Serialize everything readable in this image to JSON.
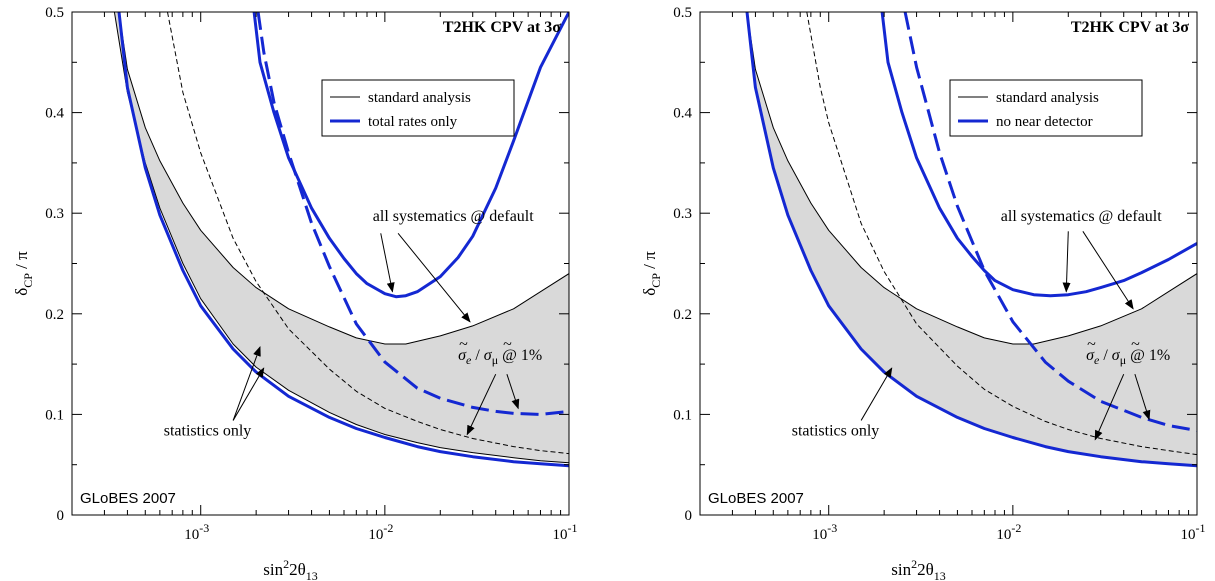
{
  "chart_data": [
    {
      "type": "line",
      "title": "T2HK  CPV at 3σ",
      "xlabel": "sin²2θ13",
      "ylabel": "δCP / π",
      "xscale": "log",
      "xlim": [
        0.0002,
        0.1
      ],
      "ylim": [
        0,
        0.5
      ],
      "x_ticks": [
        {
          "x": 0.001,
          "base": "10",
          "exp": "-3"
        },
        {
          "x": 0.01,
          "base": "10",
          "exp": "-2"
        },
        {
          "x": 0.1,
          "base": "10",
          "exp": "-1"
        }
      ],
      "y_ticks": [
        "0",
        "0.1",
        "0.2",
        "0.3",
        "0.4",
        "0.5"
      ],
      "legend": {
        "position": "top-right",
        "entries": [
          {
            "label": "standard analysis",
            "color": "#000000",
            "width": 1
          },
          {
            "label": "total rates only",
            "color": "#1428d2",
            "width": 3
          }
        ]
      },
      "watermark": "GLoBES 2007",
      "series": [
        {
          "role": "band_upper_systematics",
          "color": "#000000",
          "style": "solid",
          "x": [
            0.00036,
            0.0004,
            0.0005,
            0.0006,
            0.0008,
            0.001,
            0.0015,
            0.002,
            0.003,
            0.005,
            0.007,
            0.01,
            0.013,
            0.02,
            0.03,
            0.05,
            0.07,
            0.1
          ],
          "y": [
            0.5,
            0.443,
            0.385,
            0.352,
            0.31,
            0.283,
            0.246,
            0.226,
            0.205,
            0.187,
            0.176,
            0.17,
            0.17,
            0.178,
            0.188,
            0.205,
            0.222,
            0.24
          ]
        },
        {
          "role": "band_lower_statistics",
          "color": "#000000",
          "style": "solid",
          "x": [
            0.00034,
            0.0004,
            0.0005,
            0.0006,
            0.0008,
            0.001,
            0.0015,
            0.002,
            0.003,
            0.005,
            0.007,
            0.01,
            0.015,
            0.02,
            0.03,
            0.05,
            0.07,
            0.1
          ],
          "y": [
            0.5,
            0.42,
            0.35,
            0.305,
            0.25,
            0.215,
            0.17,
            0.147,
            0.124,
            0.102,
            0.09,
            0.08,
            0.072,
            0.067,
            0.062,
            0.057,
            0.054,
            0.052
          ]
        },
        {
          "role": "1pct",
          "color": "#000000",
          "style": "dashed",
          "x": [
            0.00066,
            0.0008,
            0.001,
            0.0015,
            0.002,
            0.003,
            0.005,
            0.007,
            0.01,
            0.015,
            0.02,
            0.03,
            0.05,
            0.07,
            0.1
          ],
          "y": [
            0.5,
            0.42,
            0.36,
            0.275,
            0.232,
            0.185,
            0.145,
            0.123,
            0.106,
            0.093,
            0.085,
            0.076,
            0.068,
            0.064,
            0.061
          ]
        },
        {
          "role": "rates_statistics",
          "color": "#1428d2",
          "style": "solid",
          "width": 3,
          "x": [
            0.00036,
            0.0004,
            0.0005,
            0.0006,
            0.0008,
            0.001,
            0.0015,
            0.002,
            0.003,
            0.005,
            0.007,
            0.01,
            0.015,
            0.02,
            0.03,
            0.05,
            0.07,
            0.1
          ],
          "y": [
            0.5,
            0.425,
            0.345,
            0.298,
            0.243,
            0.208,
            0.165,
            0.142,
            0.118,
            0.097,
            0.086,
            0.077,
            0.068,
            0.063,
            0.058,
            0.053,
            0.051,
            0.049
          ]
        },
        {
          "role": "rates_systematics",
          "color": "#1428d2",
          "style": "solid",
          "width": 3,
          "x": [
            0.00195,
            0.0021,
            0.0025,
            0.003,
            0.004,
            0.005,
            0.006,
            0.007,
            0.008,
            0.01,
            0.0115,
            0.013,
            0.015,
            0.02,
            0.025,
            0.03,
            0.04,
            0.05,
            0.07,
            0.1
          ],
          "y": [
            0.5,
            0.45,
            0.4,
            0.355,
            0.305,
            0.275,
            0.255,
            0.24,
            0.23,
            0.22,
            0.217,
            0.218,
            0.222,
            0.237,
            0.256,
            0.277,
            0.325,
            0.372,
            0.445,
            0.5
          ]
        },
        {
          "role": "rates_1pct",
          "color": "#1428d2",
          "style": "dashed",
          "width": 3,
          "x": [
            0.00205,
            0.0022,
            0.0025,
            0.003,
            0.004,
            0.005,
            0.007,
            0.01,
            0.015,
            0.02,
            0.03,
            0.04,
            0.05,
            0.07,
            0.1
          ],
          "y": [
            0.5,
            0.46,
            0.41,
            0.36,
            0.29,
            0.247,
            0.19,
            0.152,
            0.126,
            0.116,
            0.107,
            0.103,
            0.101,
            0.1,
            0.103
          ]
        }
      ],
      "annotations": [
        {
          "text": "all systematics @ default",
          "anchor_x": 0.0086,
          "anchor_y": 0.292
        },
        {
          "text": "statistics only",
          "anchor_x": 0.00063,
          "anchor_y": 0.079
        },
        {
          "text_parts": [
            "σ",
            "e",
            " / ",
            "σ",
            "μ",
            " @ 1%"
          ],
          "anchor_x": 0.025,
          "anchor_y": 0.154
        }
      ],
      "arrows": [
        {
          "x1": 0.0095,
          "y1": 0.28,
          "x2": 0.011,
          "y2": 0.222
        },
        {
          "x1": 0.0118,
          "y1": 0.28,
          "x2": 0.029,
          "y2": 0.192
        },
        {
          "x1": 0.0015,
          "y1": 0.094,
          "x2": 0.0021,
          "y2": 0.167
        },
        {
          "x1": 0.0015,
          "y1": 0.094,
          "x2": 0.0022,
          "y2": 0.146
        },
        {
          "x1": 0.046,
          "y1": 0.14,
          "x2": 0.053,
          "y2": 0.106
        },
        {
          "x1": 0.04,
          "y1": 0.14,
          "x2": 0.028,
          "y2": 0.08
        }
      ]
    },
    {
      "type": "line",
      "title": "T2HK  CPV at 3σ",
      "xlabel": "sin²2θ13",
      "ylabel": "δCP / π",
      "xscale": "log",
      "xlim": [
        0.0002,
        0.1
      ],
      "ylim": [
        0,
        0.5
      ],
      "x_ticks": [
        {
          "x": 0.001,
          "base": "10",
          "exp": "-3"
        },
        {
          "x": 0.01,
          "base": "10",
          "exp": "-2"
        },
        {
          "x": 0.1,
          "base": "10",
          "exp": "-1"
        }
      ],
      "y_ticks": [
        "0",
        "0.1",
        "0.2",
        "0.3",
        "0.4",
        "0.5"
      ],
      "legend": {
        "position": "top-right",
        "entries": [
          {
            "label": "standard analysis",
            "color": "#000000",
            "width": 1
          },
          {
            "label": "no near detector",
            "color": "#1428d2",
            "width": 3
          }
        ]
      },
      "watermark": "GLoBES 2007",
      "series": [
        {
          "role": "band_upper_systematics",
          "color": "#000000",
          "style": "solid",
          "x": [
            0.00036,
            0.0004,
            0.0005,
            0.0006,
            0.0008,
            0.001,
            0.0015,
            0.002,
            0.003,
            0.005,
            0.007,
            0.01,
            0.013,
            0.02,
            0.03,
            0.05,
            0.07,
            0.1
          ],
          "y": [
            0.5,
            0.443,
            0.385,
            0.352,
            0.31,
            0.283,
            0.246,
            0.226,
            0.205,
            0.187,
            0.176,
            0.17,
            0.17,
            0.178,
            0.188,
            0.205,
            0.222,
            0.24
          ]
        },
        {
          "role": "band_lower_statistics",
          "color": "#1428d2",
          "style": "solid",
          "width": 3,
          "x": [
            0.00036,
            0.0004,
            0.0005,
            0.0006,
            0.0008,
            0.001,
            0.0015,
            0.002,
            0.003,
            0.005,
            0.007,
            0.01,
            0.015,
            0.02,
            0.03,
            0.05,
            0.07,
            0.1
          ],
          "y": [
            0.5,
            0.425,
            0.345,
            0.298,
            0.243,
            0.208,
            0.165,
            0.142,
            0.118,
            0.097,
            0.086,
            0.077,
            0.068,
            0.063,
            0.058,
            0.053,
            0.051,
            0.049
          ]
        },
        {
          "role": "1pct",
          "color": "#000000",
          "style": "dashed",
          "x": [
            0.00076,
            0.0009,
            0.001,
            0.0015,
            0.002,
            0.003,
            0.005,
            0.007,
            0.01,
            0.015,
            0.02,
            0.03,
            0.05,
            0.07,
            0.1
          ],
          "y": [
            0.5,
            0.425,
            0.39,
            0.29,
            0.242,
            0.19,
            0.148,
            0.125,
            0.108,
            0.093,
            0.085,
            0.076,
            0.068,
            0.064,
            0.06
          ]
        },
        {
          "role": "ND_systematics",
          "color": "#1428d2",
          "style": "solid",
          "width": 3,
          "x": [
            0.00195,
            0.0021,
            0.0025,
            0.003,
            0.004,
            0.005,
            0.006,
            0.007,
            0.008,
            0.01,
            0.013,
            0.016,
            0.02,
            0.025,
            0.03,
            0.04,
            0.05,
            0.07,
            0.1
          ],
          "y": [
            0.5,
            0.45,
            0.4,
            0.355,
            0.305,
            0.275,
            0.257,
            0.243,
            0.233,
            0.224,
            0.219,
            0.218,
            0.219,
            0.222,
            0.226,
            0.233,
            0.241,
            0.254,
            0.27
          ]
        },
        {
          "role": "ND_1pct",
          "color": "#1428d2",
          "style": "dashed",
          "width": 3,
          "x": [
            0.0026,
            0.003,
            0.004,
            0.005,
            0.007,
            0.01,
            0.015,
            0.02,
            0.03,
            0.05,
            0.07,
            0.1
          ],
          "y": [
            0.5,
            0.445,
            0.36,
            0.307,
            0.243,
            0.192,
            0.152,
            0.133,
            0.113,
            0.097,
            0.089,
            0.084
          ]
        }
      ],
      "annotations": [
        {
          "text": "all systematics @ default",
          "anchor_x": 0.0086,
          "anchor_y": 0.292
        },
        {
          "text": "statistics only",
          "anchor_x": 0.00063,
          "anchor_y": 0.079
        },
        {
          "text_parts": [
            "σ",
            "e",
            " / ",
            "σ",
            "μ",
            " @ 1%"
          ],
          "anchor_x": 0.025,
          "anchor_y": 0.154
        }
      ],
      "arrows": [
        {
          "x1": 0.02,
          "y1": 0.282,
          "x2": 0.0195,
          "y2": 0.222
        },
        {
          "x1": 0.024,
          "y1": 0.282,
          "x2": 0.045,
          "y2": 0.205
        },
        {
          "x1": 0.0015,
          "y1": 0.094,
          "x2": 0.0022,
          "y2": 0.146
        },
        {
          "x1": 0.046,
          "y1": 0.14,
          "x2": 0.055,
          "y2": 0.095
        },
        {
          "x1": 0.04,
          "y1": 0.14,
          "x2": 0.028,
          "y2": 0.075
        }
      ]
    }
  ]
}
